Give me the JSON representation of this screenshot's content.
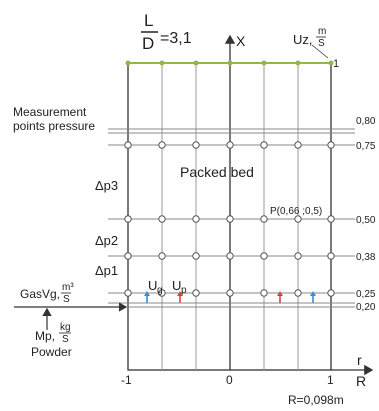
{
  "title": {
    "L": "L",
    "D": "D",
    "value": "=3,1"
  },
  "axis": {
    "x_label": "X",
    "r_label_top": "r",
    "r_label_bottom": "R",
    "tick_left": "-1",
    "tick_center": "0",
    "tick_right": "1",
    "r_value": "R=0,098m"
  },
  "velocity": {
    "uz": "Uz,",
    "unit_top": "m",
    "unit_bottom": "S",
    "corner": "1"
  },
  "labels": {
    "meas_1": "Measurement",
    "meas_2": "points pressure",
    "packed_bed": "Packed bed",
    "dp3": "Δp3",
    "dp2": "Δp2",
    "dp1": "Δp1",
    "point": "P(0,66 ;0,5)",
    "ug": "U",
    "ug_sub": "g",
    "up": "U",
    "up_sub": "p",
    "gas": "GasVg,",
    "gas_unit_top": "m³",
    "gas_unit_bottom": "S",
    "mp": "Mp,",
    "mp_unit_top": "kg",
    "mp_unit_bottom": "S",
    "powder": "Powder"
  },
  "levels": [
    {
      "label": "0,80",
      "value": 0.8
    },
    {
      "label": "0,75",
      "value": 0.75
    },
    {
      "label": "0,50",
      "value": 0.5
    },
    {
      "label": "0,38",
      "value": 0.38
    },
    {
      "label": "0,25",
      "value": 0.25
    },
    {
      "label": "0,20",
      "value": 0.2
    }
  ],
  "colors": {
    "line": "#333333",
    "grid": "#9a9a9a",
    "top_dots": "#8db84a",
    "arrow_blue": "#3a8ed6",
    "arrow_red": "#d64545"
  }
}
